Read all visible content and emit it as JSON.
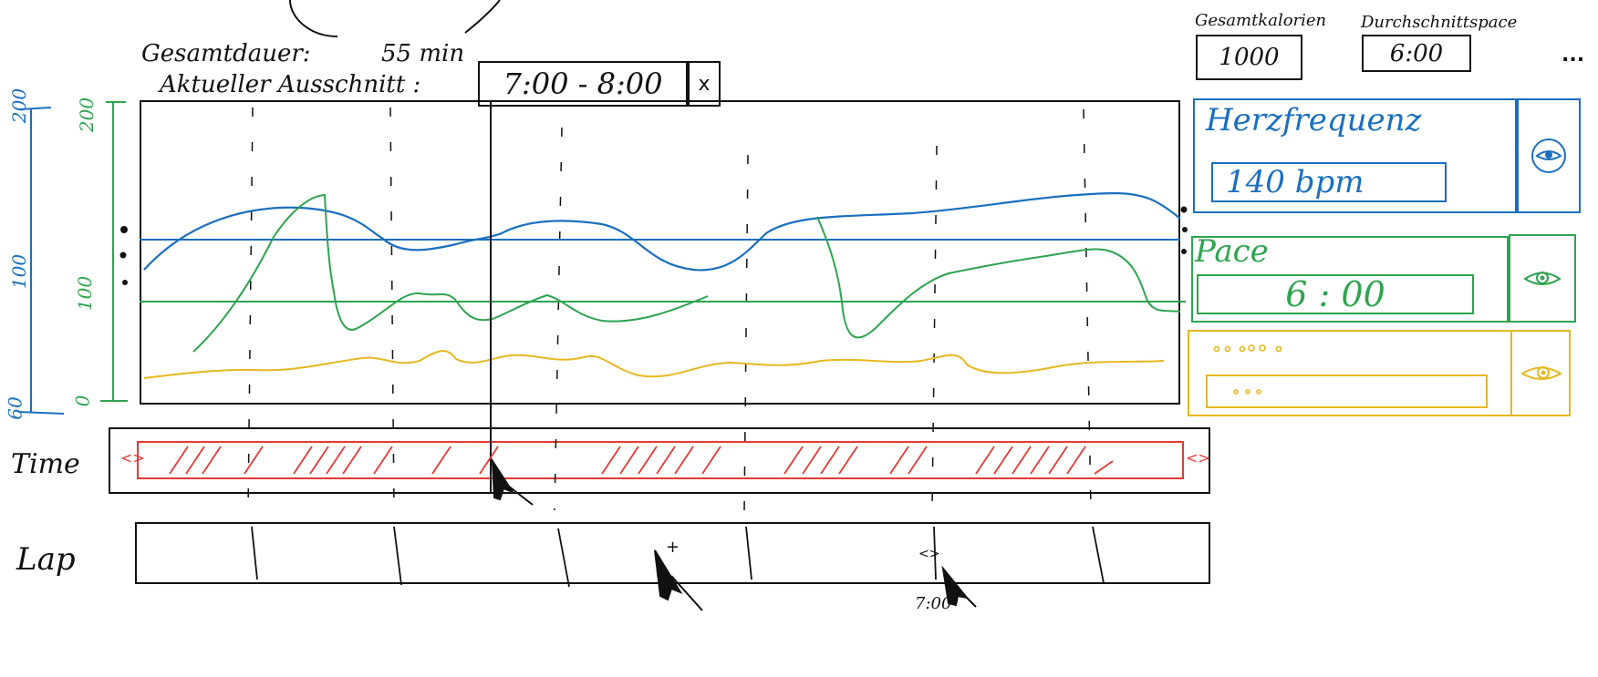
{
  "header": {
    "total_time_label": "Gesamtdauer:",
    "total_time_value": "55 min",
    "current_section_label": "Aktueller Ausschnitt :",
    "current_section_value": "7:00 - 8:00",
    "close_symbol": "x"
  },
  "summary": {
    "total_calories_label": "Gesamtkalorien",
    "total_calories_value": "1000",
    "avg_pace_label": "Durchschnittspace",
    "avg_pace_value": "6:00",
    "more_symbol": "..."
  },
  "axes": {
    "blue": {
      "top": "200",
      "mid": "100",
      "bottom": "60"
    },
    "green": {
      "top": "200",
      "mid": "100",
      "bottom": "0"
    }
  },
  "metrics": [
    {
      "title": "Herzfrequenz",
      "value": "140 bpm",
      "color": "#1a6fc0",
      "icon": "eye-icon"
    },
    {
      "title": "Pace",
      "value": "6 : 00",
      "color": "#2ea44f",
      "icon": "eye-icon"
    },
    {
      "title": "",
      "value": "",
      "color": "#e6b820",
      "icon": "eye-icon"
    }
  ],
  "timeline": {
    "time_label": "Time",
    "lap_label": "Lap",
    "left_handle": "<>",
    "right_handle": "<>",
    "lap_tooltip": "7:00",
    "lap_handle": "<>",
    "lap_add_symbol": "+"
  },
  "colors": {
    "heart_rate": "#1a6fc0",
    "pace": "#2ea44f",
    "third_metric": "#e6b820",
    "range": "#e53935",
    "ink": "#111111"
  }
}
